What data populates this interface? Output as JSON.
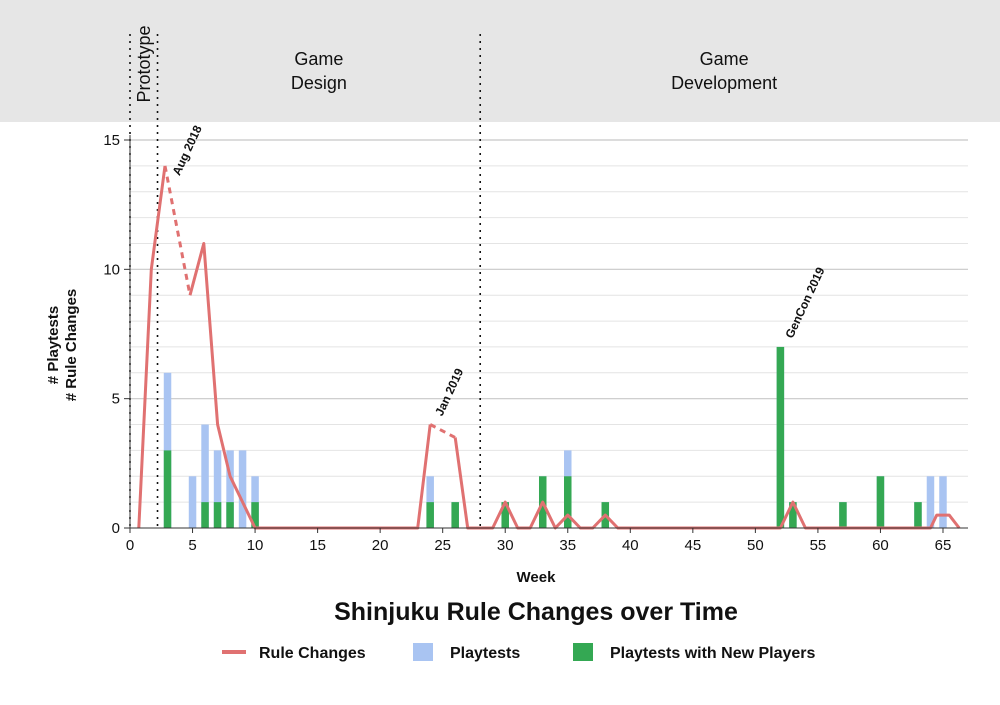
{
  "chart_data": {
    "type": "bar",
    "title": "Shinjuku Rule Changes over Time",
    "xlabel": "Week",
    "ylabel_lines": [
      "# Playtests",
      "# Rule Changes"
    ],
    "xlim": [
      0,
      67
    ],
    "ylim": [
      0,
      15
    ],
    "x_ticks": [
      0,
      5,
      10,
      15,
      20,
      25,
      30,
      35,
      40,
      45,
      50,
      55,
      60,
      65
    ],
    "y_ticks": [
      0,
      5,
      10,
      15
    ],
    "grid": true,
    "legend_position": "bottom",
    "phases": [
      {
        "label": "Prototype",
        "start": 0,
        "end": 2.2,
        "vertical": true
      },
      {
        "label": "Game\nDesign",
        "start": 2.2,
        "end": 28
      },
      {
        "label": "Game\nDevelopment",
        "start": 28,
        "end": 67
      }
    ],
    "annotations": [
      {
        "text": "Aug 2018",
        "x": 3
      },
      {
        "text": "Jan 2019",
        "x": 24
      },
      {
        "text": "GenCon 2019",
        "x": 52
      }
    ],
    "series": [
      {
        "name": "Rule Changes",
        "kind": "line",
        "color": "#e07171",
        "segments": [
          {
            "style": "solid",
            "points": [
              [
                0.7,
                0
              ],
              [
                1.7,
                10
              ],
              [
                2.8,
                14
              ]
            ]
          },
          {
            "style": "dashed",
            "points": [
              [
                2.8,
                14
              ],
              [
                4.8,
                9
              ]
            ]
          },
          {
            "style": "solid",
            "points": [
              [
                4.8,
                9
              ],
              [
                5.9,
                11
              ],
              [
                7,
                4
              ],
              [
                8,
                2
              ],
              [
                9,
                1
              ],
              [
                10,
                0
              ],
              [
                23,
                0
              ],
              [
                24,
                4
              ]
            ]
          },
          {
            "style": "dashed",
            "points": [
              [
                24,
                4
              ],
              [
                26,
                3.5
              ]
            ]
          },
          {
            "style": "solid",
            "points": [
              [
                26,
                3.5
              ],
              [
                27,
                0
              ],
              [
                29,
                0
              ],
              [
                30,
                1
              ],
              [
                31,
                0
              ],
              [
                32,
                0
              ],
              [
                33,
                1
              ],
              [
                34,
                0
              ],
              [
                35,
                0.5
              ],
              [
                36,
                0
              ],
              [
                37,
                0
              ],
              [
                38,
                0.5
              ],
              [
                39,
                0
              ],
              [
                52,
                0
              ],
              [
                53,
                1
              ],
              [
                54,
                0
              ],
              [
                64,
                0
              ],
              [
                64.5,
                0.5
              ],
              [
                65.5,
                0.5
              ],
              [
                66.3,
                0
              ]
            ]
          }
        ]
      },
      {
        "name": "Playtests",
        "kind": "bar",
        "color": "#a9c4f2",
        "x": [
          3,
          5,
          6,
          7,
          8,
          9,
          10,
          24,
          26,
          30,
          33,
          35,
          38,
          52,
          53,
          57,
          60,
          63,
          64,
          65
        ],
        "values": [
          6,
          2,
          4,
          3,
          3,
          3,
          2,
          2,
          1,
          1,
          2,
          3,
          1,
          7,
          1,
          1,
          2,
          1,
          2,
          2
        ]
      },
      {
        "name": "Playtests with New Players",
        "kind": "bar",
        "color": "#34a853",
        "x": [
          3,
          5,
          6,
          7,
          8,
          9,
          10,
          24,
          26,
          30,
          33,
          35,
          38,
          52,
          53,
          57,
          60,
          63,
          64,
          65
        ],
        "values": [
          3,
          0,
          1,
          1,
          1,
          0,
          1,
          1,
          1,
          1,
          2,
          2,
          1,
          7,
          1,
          1,
          2,
          1,
          0,
          0
        ]
      }
    ]
  }
}
